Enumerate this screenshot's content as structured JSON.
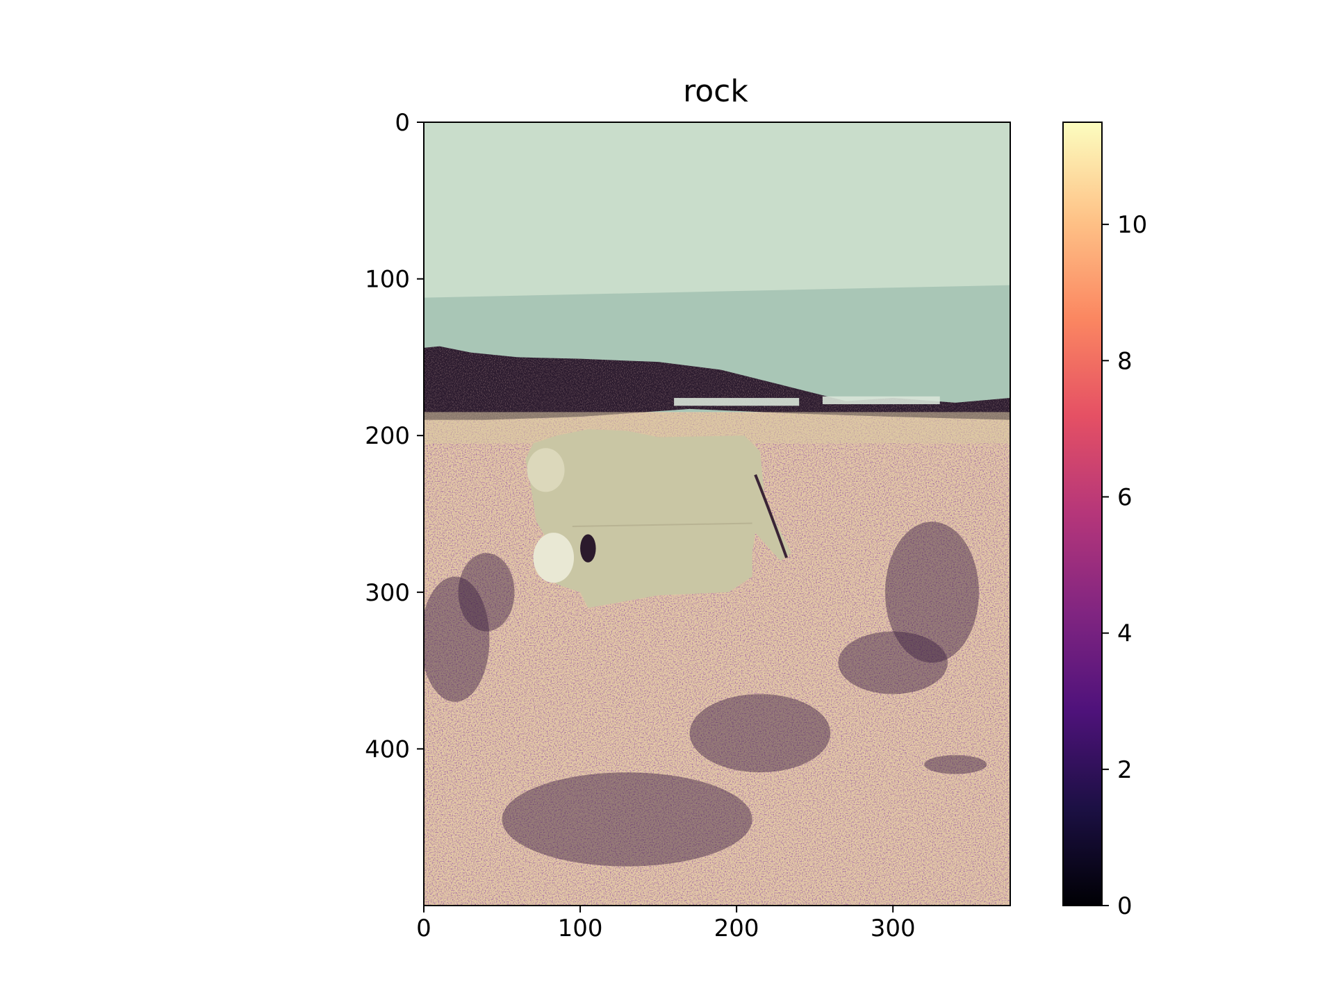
{
  "chart_data": {
    "type": "heatmap",
    "title": "rock",
    "image_size": {
      "width": 375,
      "height": 500
    },
    "x_axis": {
      "range": [
        0,
        375
      ],
      "ticks": [
        0,
        100,
        200,
        300
      ],
      "tick_labels": [
        "0",
        "100",
        "200",
        "300"
      ]
    },
    "y_axis": {
      "range": [
        0,
        500
      ],
      "inverted": true,
      "ticks": [
        0,
        100,
        200,
        300,
        400
      ],
      "tick_labels": [
        "0",
        "100",
        "200",
        "300",
        "400"
      ]
    },
    "colorbar": {
      "colormap": "magma",
      "range": [
        0,
        11.5
      ],
      "ticks": [
        0,
        2,
        4,
        6,
        8,
        10
      ],
      "tick_labels": [
        "0",
        "2",
        "4",
        "6",
        "8",
        "10"
      ],
      "stops": [
        "#000004",
        "#1c1044",
        "#4f127b",
        "#812581",
        "#b5367a",
        "#e55064",
        "#fb8761",
        "#fec287",
        "#fcfdbf"
      ]
    },
    "regions": [
      {
        "name": "sky",
        "y_range": [
          0,
          112
        ],
        "color": "#c9ddcb"
      },
      {
        "name": "sea",
        "y_range": [
          104,
          185
        ],
        "color": "#a9c6b6"
      },
      {
        "name": "rock shoreline",
        "y_range": [
          143,
          190
        ],
        "color": "#2a1a2e"
      },
      {
        "name": "ground",
        "y_range": [
          185,
          500
        ],
        "color": "#e0c9a1"
      },
      {
        "name": "cows",
        "x_range": [
          65,
          235
        ],
        "y_range": [
          195,
          310
        ],
        "color": "#c9c6a4"
      }
    ],
    "grid": false
  }
}
